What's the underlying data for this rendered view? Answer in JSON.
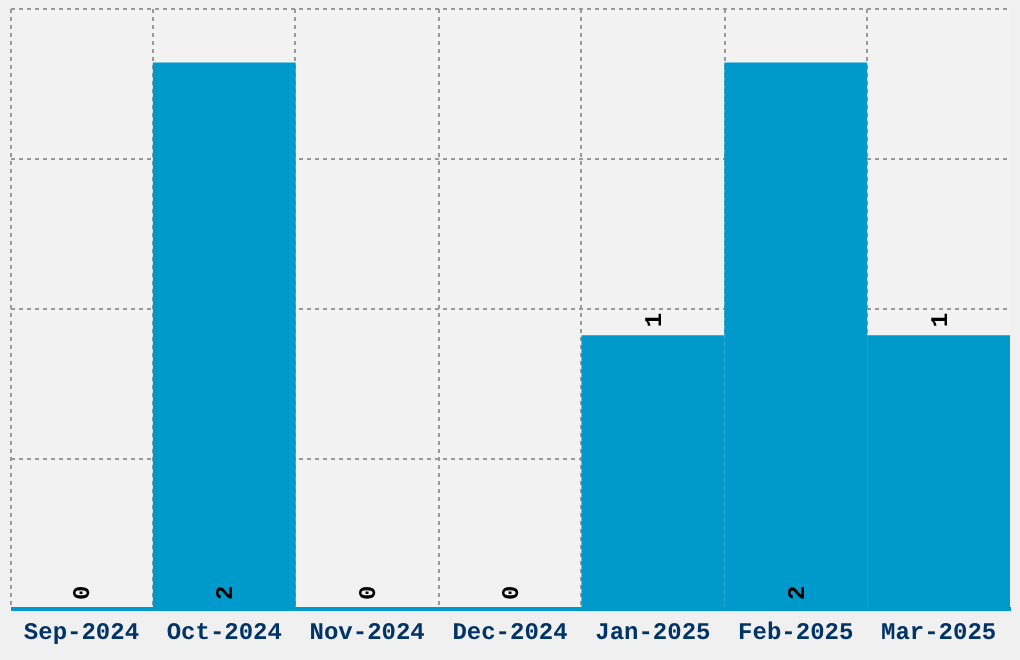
{
  "chart_data": {
    "type": "bar",
    "categories": [
      "Sep-2024",
      "Oct-2024",
      "Nov-2024",
      "Dec-2024",
      "Jan-2025",
      "Feb-2025",
      "Mar-2025"
    ],
    "values": [
      0,
      2,
      0,
      0,
      1,
      2,
      1
    ],
    "color": "#0099cc",
    "data_labels": true,
    "grid": true,
    "tick_labels": "x",
    "ylim": [
      0,
      2.2
    ],
    "yticks": [
      {
        "value": 0,
        "label": null
      },
      {
        "value": 0.55,
        "label": null
      },
      {
        "value": 1.1,
        "label": null
      },
      {
        "value": 1.65,
        "label": null
      },
      {
        "value": 2.2,
        "label": null
      }
    ]
  }
}
